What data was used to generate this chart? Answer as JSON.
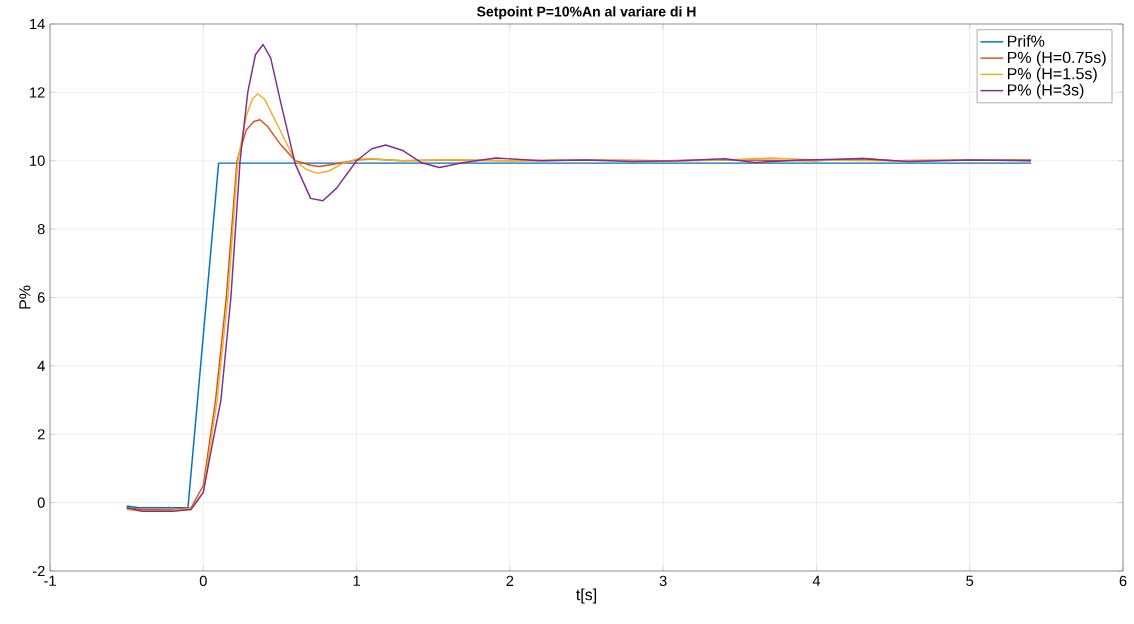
{
  "chart_data": {
    "type": "line",
    "title": "Setpoint P=10%An al variare di H",
    "xlabel": "t[s]",
    "ylabel": "P%",
    "xlim": [
      -1,
      6
    ],
    "ylim": [
      -2,
      14
    ],
    "xticks": [
      -1,
      0,
      1,
      2,
      3,
      4,
      5,
      6
    ],
    "yticks": [
      -2,
      0,
      2,
      4,
      6,
      8,
      10,
      12,
      14
    ],
    "grid": true,
    "legend": "top right",
    "line_style": "solid",
    "marker": "none",
    "series": [
      {
        "name": "Prif%",
        "color": "#0072bd",
        "x": [
          -0.5,
          -0.42,
          -0.1,
          0.1,
          5.4
        ],
        "values": [
          -0.1,
          -0.15,
          -0.15,
          9.93,
          9.93
        ]
      },
      {
        "name": "P% (H=0.75s)",
        "color": "#d95319",
        "x": [
          -0.5,
          -0.4,
          -0.2,
          -0.08,
          0,
          0.08,
          0.15,
          0.22,
          0.28,
          0.33,
          0.37,
          0.42,
          0.5,
          0.6,
          0.7,
          0.76,
          0.85,
          1.0,
          1.1,
          1.3,
          1.6,
          2.0,
          2.5,
          3.0,
          3.5,
          4.0,
          4.3,
          4.5,
          5.0,
          5.4
        ],
        "values": [
          -0.15,
          -0.2,
          -0.2,
          -0.15,
          0.5,
          3,
          6,
          10,
          10.9,
          11.15,
          11.2,
          11.0,
          10.5,
          10.0,
          9.87,
          9.83,
          9.9,
          10.02,
          10.05,
          10.0,
          10.02,
          10.0,
          10.02,
          10.0,
          10.02,
          10.0,
          10.07,
          10.0,
          10.02,
          10.02
        ]
      },
      {
        "name": "P% (H=1.5s)",
        "color": "#edb120",
        "x": [
          -0.5,
          -0.4,
          -0.2,
          -0.08,
          0,
          0.09,
          0.16,
          0.225,
          0.28,
          0.32,
          0.355,
          0.4,
          0.5,
          0.6,
          0.67,
          0.745,
          0.82,
          0.9,
          1.0,
          1.1,
          1.3,
          1.6,
          2.0,
          2.5,
          3.0,
          3.4,
          3.7,
          4.0,
          4.5,
          5.0,
          5.4
        ],
        "values": [
          -0.2,
          -0.25,
          -0.22,
          -0.18,
          0.3,
          3,
          6,
          10,
          11.3,
          11.8,
          11.96,
          11.8,
          10.9,
          10.0,
          9.75,
          9.63,
          9.7,
          9.9,
          10.05,
          10.05,
          10.0,
          10.03,
          10.0,
          10.02,
          10.0,
          10.02,
          10.08,
          10.02,
          10.0,
          10.02,
          10.0
        ]
      },
      {
        "name": "P% (H=3s)",
        "color": "#7e2f8e",
        "x": [
          -0.5,
          -0.4,
          -0.2,
          -0.08,
          0,
          0.05,
          0.115,
          0.18,
          0.24,
          0.29,
          0.34,
          0.39,
          0.44,
          0.5,
          0.6,
          0.7,
          0.78,
          0.87,
          1.0,
          1.1,
          1.19,
          1.3,
          1.42,
          1.54,
          1.7,
          1.91,
          2.2,
          2.5,
          2.8,
          3.1,
          3.4,
          3.6,
          3.9,
          4.3,
          4.6,
          5.0,
          5.4
        ],
        "values": [
          -0.15,
          -0.25,
          -0.25,
          -0.2,
          0.3,
          1.5,
          3,
          6,
          10,
          12,
          13.1,
          13.4,
          13.0,
          11.8,
          9.9,
          8.9,
          8.83,
          9.2,
          10.0,
          10.35,
          10.46,
          10.3,
          9.95,
          9.8,
          9.95,
          10.08,
          10.0,
          10.02,
          9.98,
          10.0,
          10.06,
          9.95,
          10.02,
          10.06,
          9.98,
          10.02,
          10.0
        ]
      }
    ]
  }
}
